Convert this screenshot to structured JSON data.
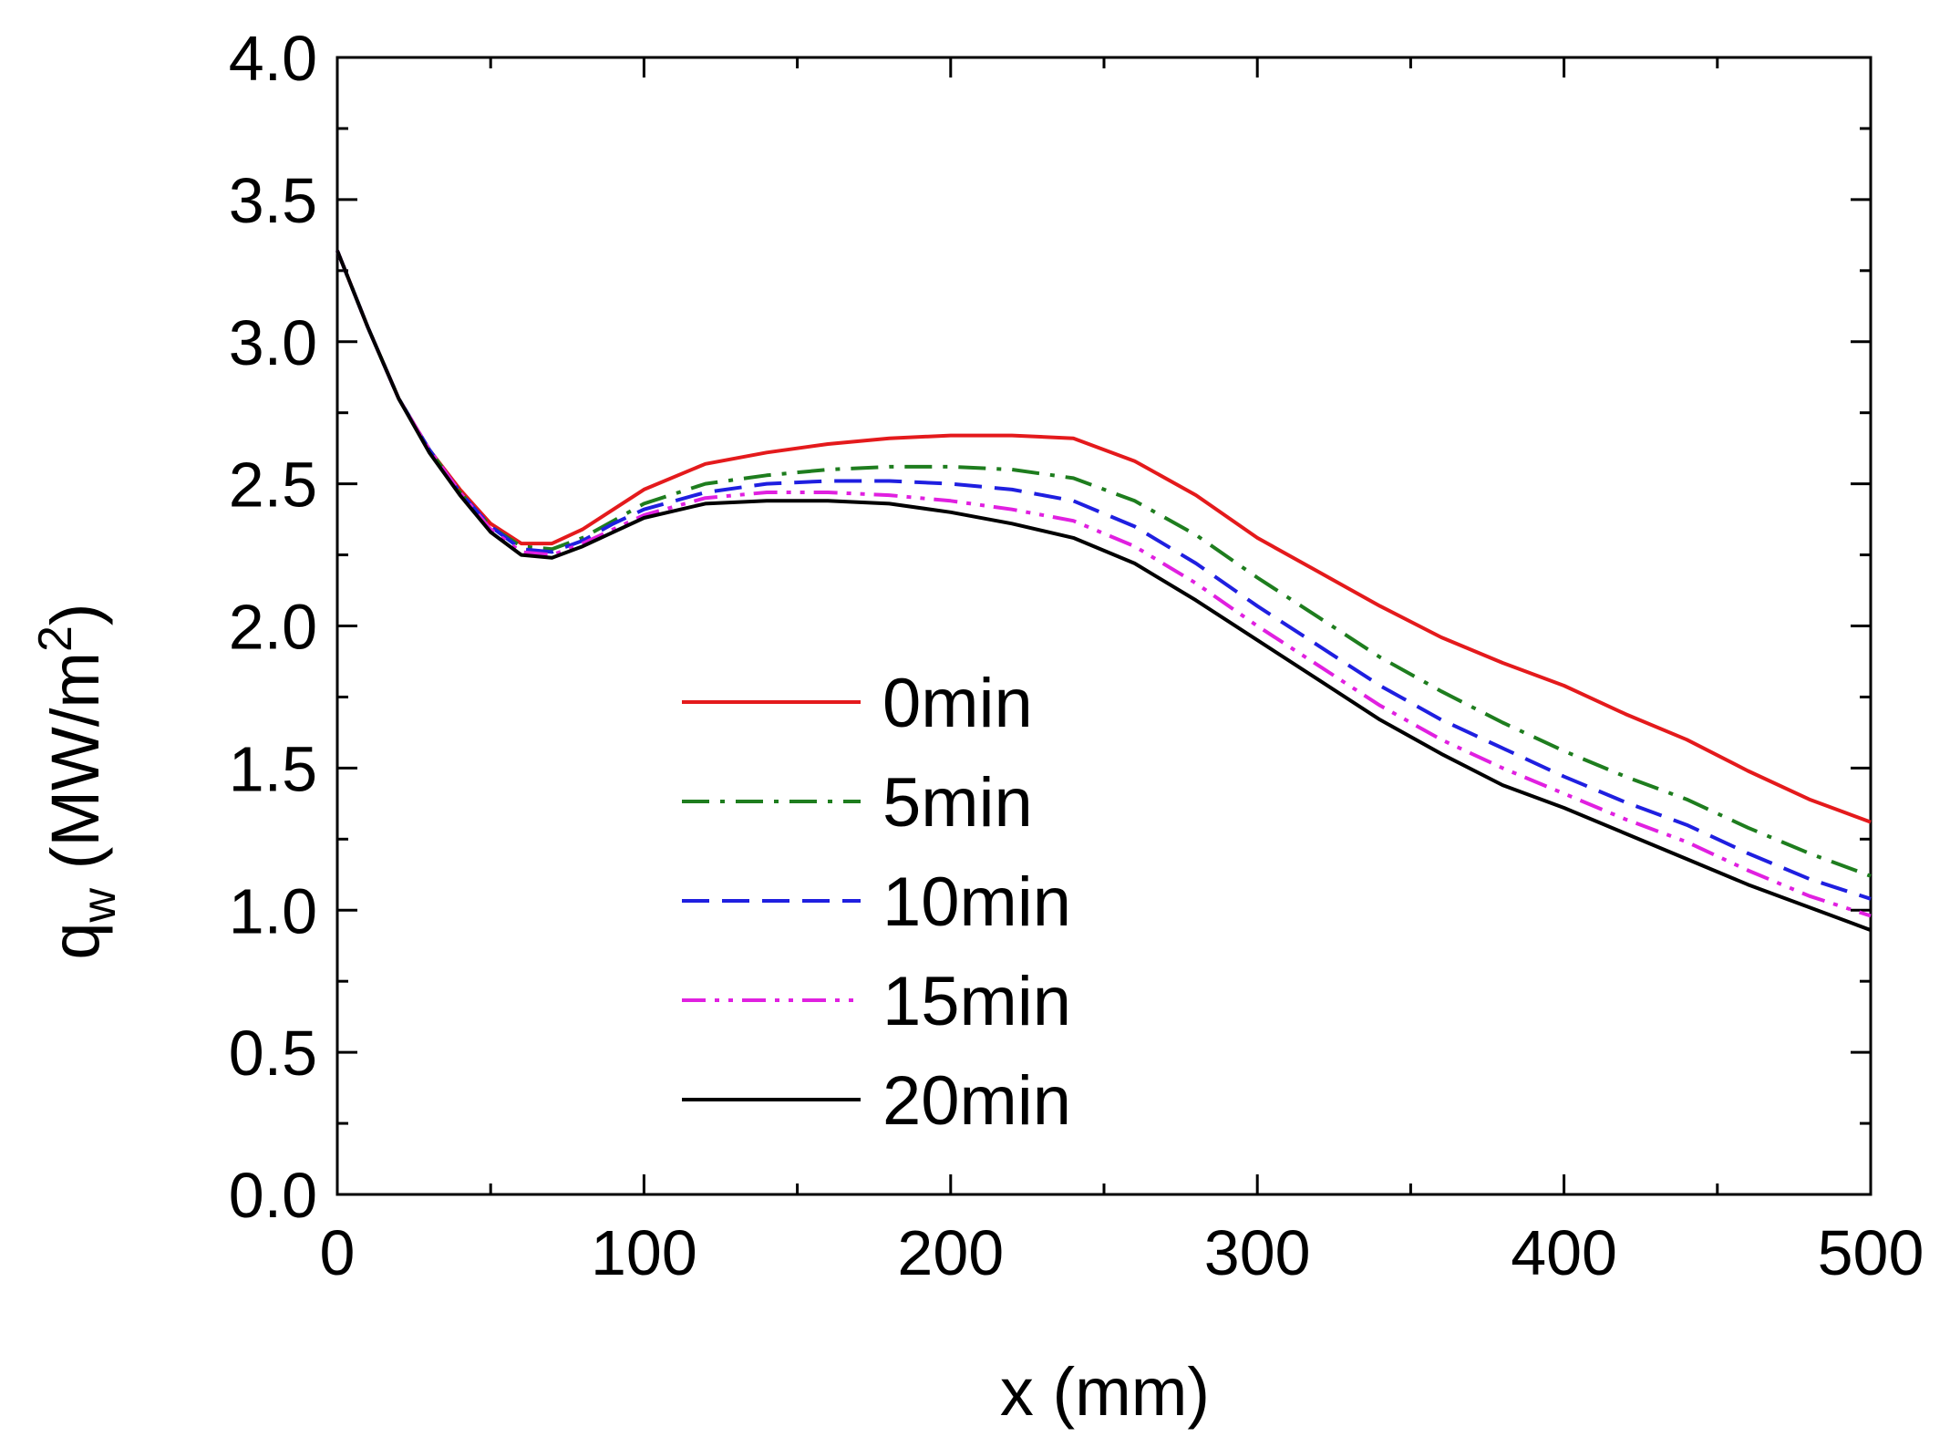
{
  "chart_data": {
    "type": "line",
    "title": "",
    "xlabel": "x (mm)",
    "ylabel": {
      "base": "q",
      "sub": "w",
      "units_open": " (MW/m",
      "units_sup": "2",
      "units_close": ")"
    },
    "xlim": [
      0,
      500
    ],
    "ylim": [
      0.0,
      4.0
    ],
    "xticks": [
      0,
      100,
      200,
      300,
      400,
      500
    ],
    "xtick_labels": [
      "0",
      "100",
      "200",
      "300",
      "400",
      "500"
    ],
    "yticks": [
      0.0,
      0.5,
      1.0,
      1.5,
      2.0,
      2.5,
      3.0,
      3.5,
      4.0
    ],
    "ytick_labels": [
      "0.0",
      "0.5",
      "1.0",
      "1.5",
      "2.0",
      "2.5",
      "3.0",
      "3.5",
      "4.0"
    ],
    "grid": false,
    "legend_position": "center",
    "x": [
      0,
      10,
      20,
      30,
      40,
      50,
      60,
      70,
      80,
      90,
      100,
      120,
      140,
      160,
      180,
      200,
      220,
      240,
      260,
      280,
      300,
      320,
      340,
      360,
      380,
      400,
      420,
      440,
      460,
      480,
      500
    ],
    "series": [
      {
        "name": "0min",
        "color": "#e41a1c",
        "dash": "solid",
        "values": [
          3.32,
          3.05,
          2.8,
          2.62,
          2.48,
          2.36,
          2.29,
          2.29,
          2.34,
          2.41,
          2.48,
          2.57,
          2.61,
          2.64,
          2.66,
          2.67,
          2.67,
          2.66,
          2.58,
          2.46,
          2.31,
          2.19,
          2.07,
          1.96,
          1.87,
          1.79,
          1.69,
          1.6,
          1.49,
          1.39,
          1.31
        ]
      },
      {
        "name": "5min",
        "color": "#1e7d1e",
        "dash": "dash-dot",
        "values": [
          3.32,
          3.05,
          2.8,
          2.62,
          2.47,
          2.35,
          2.28,
          2.27,
          2.31,
          2.37,
          2.43,
          2.5,
          2.53,
          2.55,
          2.56,
          2.56,
          2.55,
          2.52,
          2.44,
          2.32,
          2.17,
          2.03,
          1.89,
          1.77,
          1.66,
          1.56,
          1.47,
          1.39,
          1.29,
          1.2,
          1.12
        ]
      },
      {
        "name": "10min",
        "color": "#1f1fe0",
        "dash": "dashed",
        "values": [
          3.32,
          3.05,
          2.8,
          2.62,
          2.47,
          2.35,
          2.27,
          2.26,
          2.3,
          2.36,
          2.41,
          2.47,
          2.5,
          2.51,
          2.51,
          2.5,
          2.48,
          2.44,
          2.35,
          2.22,
          2.07,
          1.93,
          1.79,
          1.67,
          1.57,
          1.47,
          1.38,
          1.3,
          1.2,
          1.11,
          1.04
        ]
      },
      {
        "name": "15min",
        "color": "#e020e0",
        "dash": "dash-dot-dot",
        "values": [
          3.32,
          3.05,
          2.8,
          2.62,
          2.47,
          2.34,
          2.26,
          2.25,
          2.29,
          2.34,
          2.39,
          2.45,
          2.47,
          2.47,
          2.46,
          2.44,
          2.41,
          2.37,
          2.28,
          2.15,
          2.0,
          1.86,
          1.72,
          1.6,
          1.5,
          1.41,
          1.32,
          1.24,
          1.14,
          1.05,
          0.98
        ]
      },
      {
        "name": "20min",
        "color": "#000000",
        "dash": "solid",
        "values": [
          3.32,
          3.05,
          2.8,
          2.61,
          2.46,
          2.33,
          2.25,
          2.24,
          2.28,
          2.33,
          2.38,
          2.43,
          2.44,
          2.44,
          2.43,
          2.4,
          2.36,
          2.31,
          2.22,
          2.09,
          1.95,
          1.81,
          1.67,
          1.55,
          1.44,
          1.36,
          1.27,
          1.18,
          1.09,
          1.01,
          0.93
        ]
      }
    ]
  }
}
